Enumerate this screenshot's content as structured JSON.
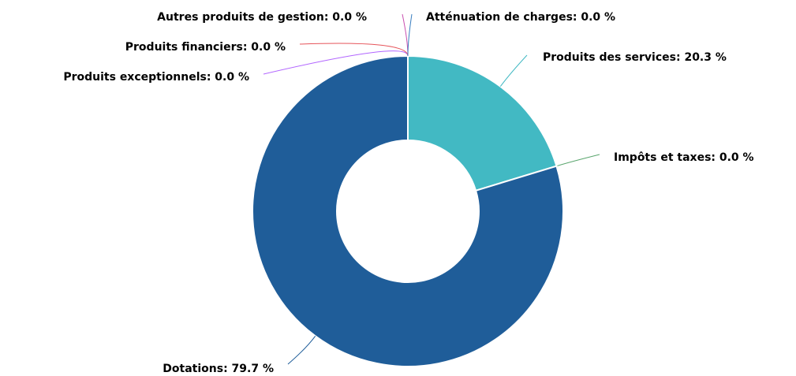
{
  "chart_data": {
    "type": "donut",
    "values": [
      20.3,
      0,
      79.7,
      0,
      0,
      0,
      0
    ],
    "value_labels": [
      "Produits des services: 20.3 %",
      "Impôts et taxes: 0.0 %",
      "Dotations: 79.7 %",
      "Produits exceptionnels: 0.0 %",
      "Produits financiers: 0.0 %",
      "Autres produits de gestion: 0.0 %",
      "Atténuation de charges: 0.0 %"
    ],
    "colors": [
      "#42b9c3",
      "#5aa66e",
      "#1f5d99",
      "#b266ff",
      "#e6545a",
      "#c94fb0",
      "#3a7fc0"
    ]
  }
}
